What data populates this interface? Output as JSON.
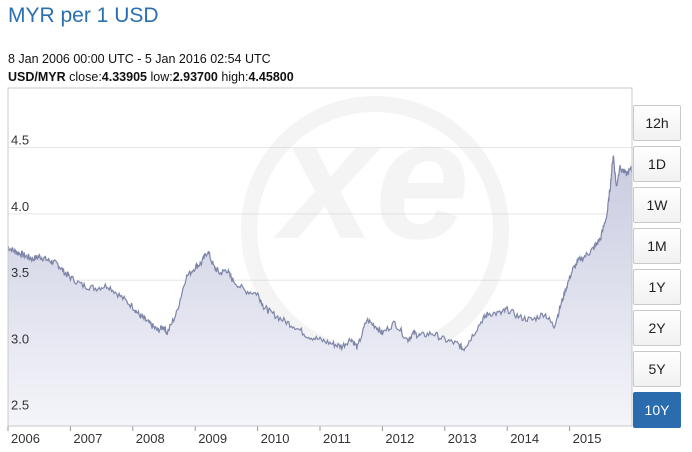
{
  "header": {
    "title": "MYR per 1 USD",
    "date_range": "8 Jan 2006 00:00 UTC - 5 Jan 2016 02:54 UTC",
    "pair": "USD/MYR",
    "close_label": "close:",
    "close_value": "4.33905",
    "low_label": "low:",
    "low_value": "2.93700",
    "high_label": "high:",
    "high_value": "4.45800"
  },
  "range_buttons": [
    {
      "label": "12h",
      "active": false
    },
    {
      "label": "1D",
      "active": false
    },
    {
      "label": "1W",
      "active": false
    },
    {
      "label": "1M",
      "active": false
    },
    {
      "label": "1Y",
      "active": false
    },
    {
      "label": "2Y",
      "active": false
    },
    {
      "label": "5Y",
      "active": false
    },
    {
      "label": "10Y",
      "active": true
    }
  ],
  "colors": {
    "line": "#7e85a8",
    "area_top": "#c9cbe0",
    "area_bottom": "#f4f5fa",
    "active_button": "#2b6cae",
    "title": "#2a6fb0"
  },
  "chart_data": {
    "type": "area",
    "title": "MYR per 1 USD",
    "xlabel": "",
    "ylabel": "",
    "xlim": [
      2006.0,
      2016.0
    ],
    "ylim": [
      2.4,
      4.95
    ],
    "y_ticks": [
      "2.5",
      "3.0",
      "3.5",
      "4.0",
      "4.5"
    ],
    "y_tick_values": [
      2.5,
      3.0,
      3.5,
      4.0,
      4.5
    ],
    "x_ticks": [
      "2006",
      "2007",
      "2008",
      "2009",
      "2010",
      "2011",
      "2012",
      "2013",
      "2014",
      "2015"
    ],
    "grid": true,
    "series": [
      {
        "x": [
          2006.0,
          2006.1,
          2006.2,
          2006.3,
          2006.4,
          2006.5,
          2006.6,
          2006.7,
          2006.8,
          2006.9,
          2007.0,
          2007.2,
          2007.4,
          2007.6,
          2007.8,
          2008.0,
          2008.1,
          2008.2,
          2008.3,
          2008.4,
          2008.5,
          2008.55,
          2008.7,
          2008.85,
          2009.0,
          2009.1,
          2009.2,
          2009.3,
          2009.4,
          2009.5,
          2009.6,
          2009.8,
          2010.0,
          2010.1,
          2010.2,
          2010.4,
          2010.6,
          2010.8,
          2011.0,
          2011.2,
          2011.35,
          2011.5,
          2011.6,
          2011.75,
          2011.9,
          2012.0,
          2012.2,
          2012.4,
          2012.5,
          2012.6,
          2012.8,
          2013.0,
          2013.2,
          2013.3,
          2013.4,
          2013.6,
          2013.7,
          2013.9,
          2014.0,
          2014.2,
          2014.4,
          2014.6,
          2014.75,
          2014.85,
          2014.95,
          2015.05,
          2015.15,
          2015.3,
          2015.4,
          2015.5,
          2015.6,
          2015.65,
          2015.7,
          2015.75,
          2015.8,
          2015.9,
          2016.0
        ],
        "y": [
          3.75,
          3.72,
          3.7,
          3.68,
          3.66,
          3.68,
          3.66,
          3.64,
          3.62,
          3.56,
          3.52,
          3.46,
          3.44,
          3.46,
          3.38,
          3.3,
          3.24,
          3.2,
          3.16,
          3.12,
          3.15,
          3.1,
          3.25,
          3.52,
          3.6,
          3.63,
          3.72,
          3.6,
          3.55,
          3.58,
          3.5,
          3.42,
          3.4,
          3.3,
          3.26,
          3.2,
          3.15,
          3.08,
          3.05,
          3.02,
          3.0,
          3.06,
          2.99,
          3.2,
          3.15,
          3.1,
          3.18,
          3.05,
          3.1,
          3.08,
          3.1,
          3.05,
          3.02,
          2.98,
          3.05,
          3.2,
          3.25,
          3.25,
          3.28,
          3.22,
          3.2,
          3.25,
          3.15,
          3.3,
          3.45,
          3.58,
          3.65,
          3.7,
          3.75,
          3.82,
          4.0,
          4.2,
          4.45,
          4.2,
          4.35,
          4.3,
          4.34
        ]
      }
    ],
    "watermark": "xe"
  }
}
